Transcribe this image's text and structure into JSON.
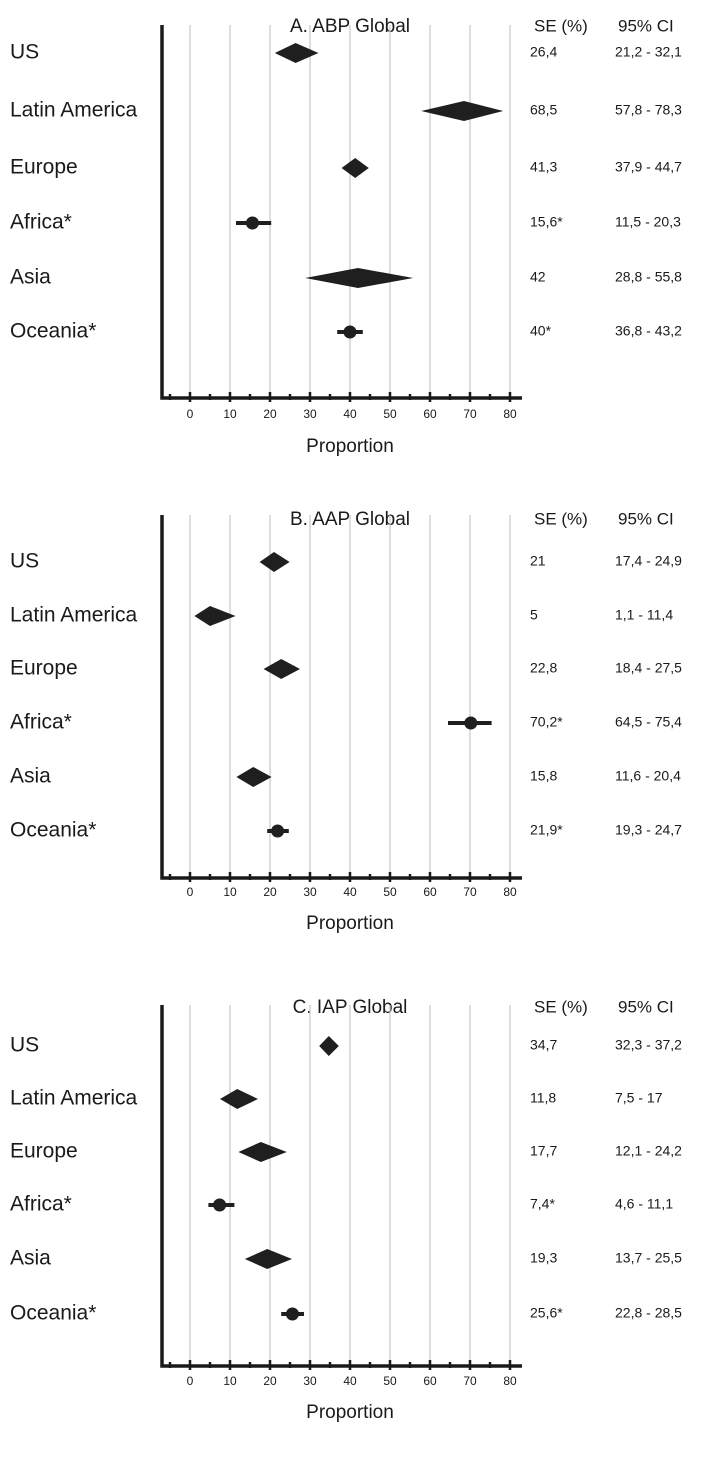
{
  "chart_data": [
    {
      "type": "forest",
      "title": "A. ABP Global",
      "xlabel": "Proportion",
      "xlim": [
        -7,
        83
      ],
      "xticks": [
        0,
        10,
        20,
        30,
        40,
        50,
        60,
        70,
        80
      ],
      "col_headers": {
        "estimate": "SE (%)",
        "ci": "95% CI"
      },
      "rows": [
        {
          "label": "US",
          "estimate": 26.4,
          "ci": [
            21.2,
            32.1
          ],
          "marker": "diamond",
          "estimate_text": "26,4",
          "ci_text": "21,2 - 32,1"
        },
        {
          "label": "Latin America",
          "estimate": 68.5,
          "ci": [
            57.8,
            78.3
          ],
          "marker": "diamond",
          "estimate_text": "68,5",
          "ci_text": "57,8 - 78,3"
        },
        {
          "label": "Europe",
          "estimate": 41.3,
          "ci": [
            37.9,
            44.7
          ],
          "marker": "diamond",
          "estimate_text": "41,3",
          "ci_text": "37,9 - 44,7"
        },
        {
          "label": "Africa*",
          "estimate": 15.6,
          "ci": [
            11.5,
            20.3
          ],
          "marker": "point",
          "estimate_text": "15,6*",
          "ci_text": "11,5 - 20,3"
        },
        {
          "label": "Asia",
          "estimate": 42,
          "ci": [
            28.8,
            55.8
          ],
          "marker": "diamond",
          "estimate_text": "42",
          "ci_text": "28,8 - 55,8"
        },
        {
          "label": "Oceania*",
          "estimate": 40,
          "ci": [
            36.8,
            43.2
          ],
          "marker": "point",
          "estimate_text": "40*",
          "ci_text": "36,8 - 43,2"
        }
      ]
    },
    {
      "type": "forest",
      "title": "B. AAP Global",
      "xlabel": "Proportion",
      "xlim": [
        -7,
        83
      ],
      "xticks": [
        0,
        10,
        20,
        30,
        40,
        50,
        60,
        70,
        80
      ],
      "col_headers": {
        "estimate": "SE (%)",
        "ci": "95% CI"
      },
      "rows": [
        {
          "label": "US",
          "estimate": 21,
          "ci": [
            17.4,
            24.9
          ],
          "marker": "diamond",
          "estimate_text": "21",
          "ci_text": "17,4 - 24,9"
        },
        {
          "label": "Latin America",
          "estimate": 5,
          "ci": [
            1.1,
            11.4
          ],
          "marker": "diamond",
          "estimate_text": "5",
          "ci_text": "1,1  - 11,4"
        },
        {
          "label": "Europe",
          "estimate": 22.8,
          "ci": [
            18.4,
            27.5
          ],
          "marker": "diamond",
          "estimate_text": "22,8",
          "ci_text": "18,4 - 27,5"
        },
        {
          "label": "Africa*",
          "estimate": 70.2,
          "ci": [
            64.5,
            75.4
          ],
          "marker": "point",
          "estimate_text": "70,2*",
          "ci_text": "64,5 - 75,4"
        },
        {
          "label": "Asia",
          "estimate": 15.8,
          "ci": [
            11.6,
            20.4
          ],
          "marker": "diamond",
          "estimate_text": "15,8",
          "ci_text": "11,6 - 20,4"
        },
        {
          "label": "Oceania*",
          "estimate": 21.9,
          "ci": [
            19.3,
            24.7
          ],
          "marker": "point",
          "estimate_text": "21,9*",
          "ci_text": "19,3 - 24,7"
        }
      ]
    },
    {
      "type": "forest",
      "title": "C. IAP Global",
      "xlabel": "Proportion",
      "xlim": [
        -7,
        83
      ],
      "xticks": [
        0,
        10,
        20,
        30,
        40,
        50,
        60,
        70,
        80
      ],
      "col_headers": {
        "estimate": "SE (%)",
        "ci": "95% CI"
      },
      "rows": [
        {
          "label": "US",
          "estimate": 34.7,
          "ci": [
            32.3,
            37.2
          ],
          "marker": "diamond",
          "estimate_text": "34,7",
          "ci_text": "32,3 - 37,2"
        },
        {
          "label": "Latin America",
          "estimate": 11.8,
          "ci": [
            7.5,
            17
          ],
          "marker": "diamond",
          "estimate_text": "11,8",
          "ci_text": "7,5 - 17"
        },
        {
          "label": "Europe",
          "estimate": 17.7,
          "ci": [
            12.1,
            24.2
          ],
          "marker": "diamond",
          "estimate_text": "17,7",
          "ci_text": "12,1 - 24,2"
        },
        {
          "label": "Africa*",
          "estimate": 7.4,
          "ci": [
            4.6,
            11.1
          ],
          "marker": "point",
          "estimate_text": "7,4*",
          "ci_text": "4,6 - 11,1"
        },
        {
          "label": "Asia",
          "estimate": 19.3,
          "ci": [
            13.7,
            25.5
          ],
          "marker": "diamond",
          "estimate_text": "19,3",
          "ci_text": "13,7 - 25,5"
        },
        {
          "label": "Oceania*",
          "estimate": 25.6,
          "ci": [
            22.8,
            28.5
          ],
          "marker": "point",
          "estimate_text": "25,6*",
          "ci_text": "22,8 - 28,5"
        }
      ]
    }
  ]
}
